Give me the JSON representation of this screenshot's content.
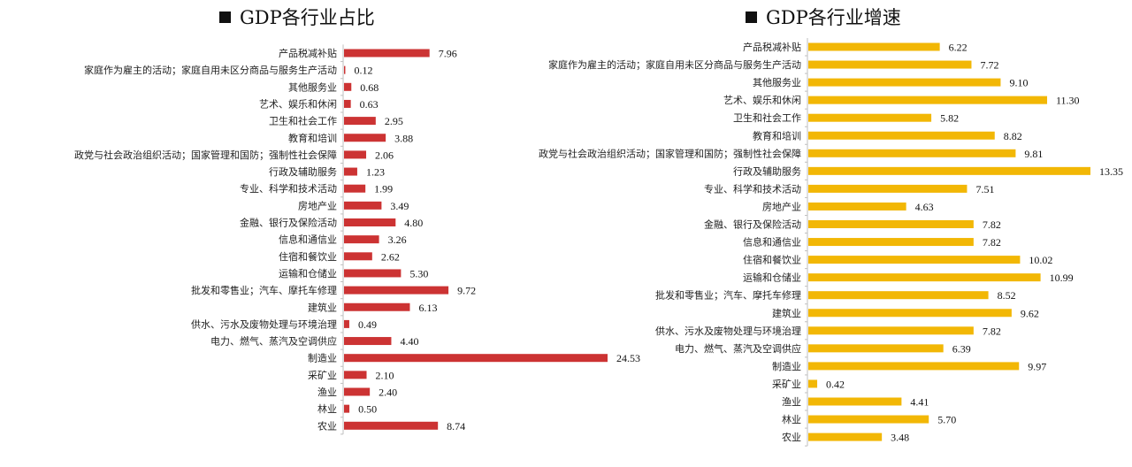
{
  "chart_data": [
    {
      "type": "bar",
      "orientation": "horizontal",
      "title": "GDP各行业占比",
      "color": "#cc3333",
      "xlim": [
        0,
        24.53
      ],
      "grid": false,
      "legend": "none",
      "categories": [
        "产品税减补贴",
        "家庭作为雇主的活动；家庭自用未区分商品与服务生产活动",
        "其他服务业",
        "艺术、娱乐和休闲",
        "卫生和社会工作",
        "教育和培训",
        "政党与社会政治组织活动；国家管理和国防；强制性社会保障",
        "行政及辅助服务",
        "专业、科学和技术活动",
        "房地产业",
        "金融、银行及保险活动",
        "信息和通信业",
        "住宿和餐饮业",
        "运输和仓储业",
        "批发和零售业；汽车、摩托车修理",
        "建筑业",
        "供水、污水及废物处理与环境治理",
        "电力、燃气、蒸汽及空调供应",
        "制造业",
        "采矿业",
        "渔业",
        "林业",
        "农业"
      ],
      "values": [
        7.96,
        0.12,
        0.68,
        0.63,
        2.95,
        3.88,
        2.06,
        1.23,
        1.99,
        3.49,
        4.8,
        3.26,
        2.62,
        5.3,
        9.72,
        6.13,
        0.49,
        4.4,
        24.53,
        2.1,
        2.4,
        0.5,
        8.74
      ],
      "value_labels": [
        "7.96",
        "0.12",
        "0.68",
        "0.63",
        "2.95",
        "3.88",
        "2.06",
        "1.23",
        "1.99",
        "3.49",
        "4.80",
        "3.26",
        "2.62",
        "5.30",
        "9.72",
        "6.13",
        "0.49",
        "4.40",
        "24.53",
        "2.10",
        "2.40",
        "0.50",
        "8.74"
      ]
    },
    {
      "type": "bar",
      "orientation": "horizontal",
      "title": "GDP各行业增速",
      "color": "#f2b705",
      "xlim": [
        0,
        13.35
      ],
      "grid": false,
      "legend": "none",
      "categories": [
        "产品税减补贴",
        "家庭作为雇主的活动；家庭自用未区分商品与服务生产活动",
        "其他服务业",
        "艺术、娱乐和休闲",
        "卫生和社会工作",
        "教育和培训",
        "政党与社会政治组织活动；国家管理和国防；强制性社会保障",
        "行政及辅助服务",
        "专业、科学和技术活动",
        "房地产业",
        "金融、银行及保险活动",
        "信息和通信业",
        "住宿和餐饮业",
        "运输和仓储业",
        "批发和零售业；汽车、摩托车修理",
        "建筑业",
        "供水、污水及废物处理与环境治理",
        "电力、燃气、蒸汽及空调供应",
        "制造业",
        "采矿业",
        "渔业",
        "林业",
        "农业"
      ],
      "values": [
        6.22,
        7.72,
        9.1,
        11.3,
        5.82,
        8.82,
        9.81,
        13.35,
        7.51,
        4.63,
        7.82,
        7.82,
        10.02,
        10.99,
        8.52,
        9.62,
        7.82,
        6.39,
        9.97,
        0.42,
        4.41,
        5.7,
        3.48
      ],
      "value_labels": [
        "6.22",
        "7.72",
        "9.10",
        "11.30",
        "5.82",
        "8.82",
        "9.81",
        "13.35",
        "7.51",
        "4.63",
        "7.82",
        "7.82",
        "10.02",
        "10.99",
        "8.52",
        "9.62",
        "7.82",
        "6.39",
        "9.97",
        "0.42",
        "4.41",
        "5.70",
        "3.48"
      ]
    }
  ]
}
